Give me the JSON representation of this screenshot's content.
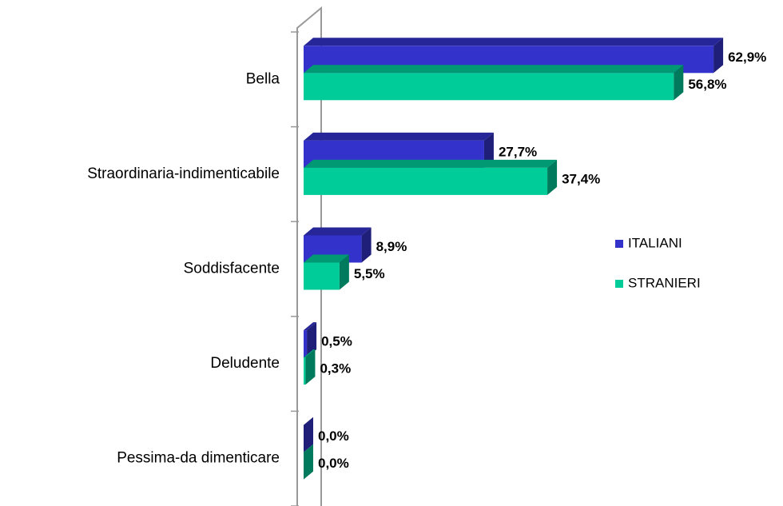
{
  "chart_data": {
    "type": "bar3d_horizontal",
    "categories": [
      "Bella",
      "Straordinaria-indimenticabile",
      "Soddisfacente",
      "Deludente",
      "Pessima-da dimenticare"
    ],
    "series": [
      {
        "name": "ITALIANI",
        "color": "#3333cc",
        "values": [
          62.9,
          27.7,
          8.9,
          0.5,
          0.0
        ],
        "value_labels": [
          "62,9%",
          "27,7%",
          "8,9%",
          "0,5%",
          "0,0%"
        ]
      },
      {
        "name": "STRANIERI",
        "color": "#00cc99",
        "values": [
          56.8,
          37.4,
          5.5,
          0.3,
          0.0
        ],
        "value_labels": [
          "56,8%",
          "37,4%",
          "5,5%",
          "0,3%",
          "0,0%"
        ]
      }
    ],
    "xlim": [
      0,
      70
    ],
    "legend": "right"
  }
}
